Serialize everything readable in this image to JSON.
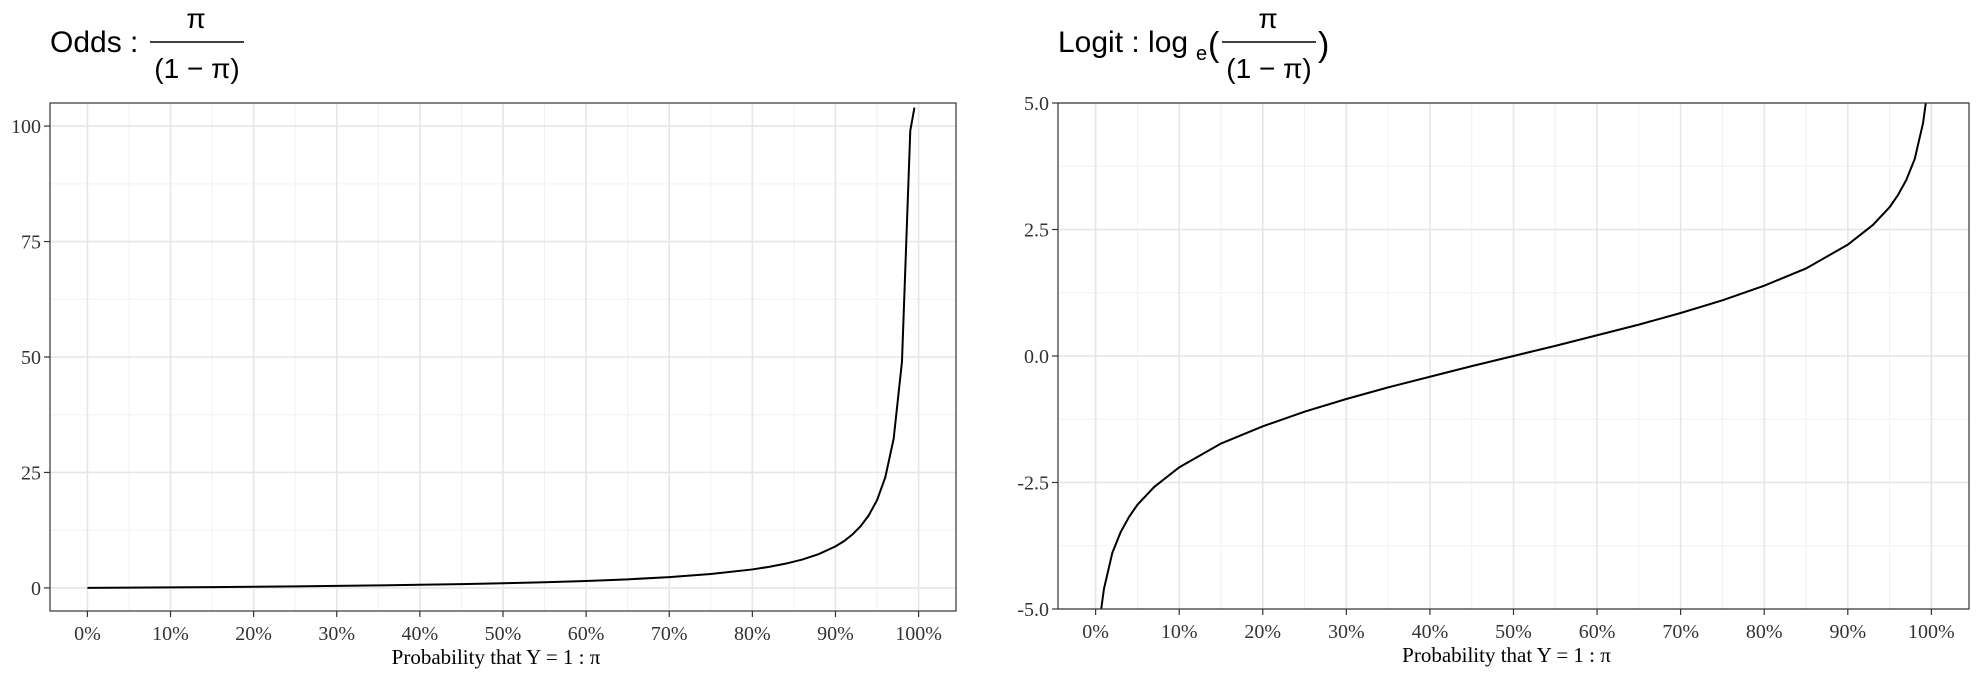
{
  "chart_data": [
    {
      "type": "line",
      "title": {
        "prefix": "Odds : ",
        "numerator": "π",
        "denominator": "(1 − π)"
      },
      "xlabel": "Probability that Y = 1 : π",
      "ylabel": "",
      "xlim": [
        0,
        1
      ],
      "ylim": [
        -5,
        105
      ],
      "x_ticks": [
        0,
        0.1,
        0.2,
        0.3,
        0.4,
        0.5,
        0.6,
        0.7,
        0.8,
        0.9,
        1.0
      ],
      "x_tick_labels": [
        "0%",
        "10%",
        "20%",
        "30%",
        "40%",
        "50%",
        "60%",
        "70%",
        "80%",
        "90%",
        "100%"
      ],
      "y_ticks": [
        0,
        25,
        50,
        75,
        100
      ],
      "y_tick_labels": [
        "0",
        "25",
        "50",
        "75",
        "100"
      ],
      "grid": true,
      "series": [
        {
          "x": [
            0,
            0.05,
            0.1,
            0.15,
            0.2,
            0.25,
            0.3,
            0.35,
            0.4,
            0.45,
            0.5,
            0.55,
            0.6,
            0.65,
            0.7,
            0.75,
            0.8,
            0.82,
            0.84,
            0.86,
            0.88,
            0.9,
            0.91,
            0.92,
            0.93,
            0.94,
            0.95,
            0.96,
            0.97,
            0.98,
            0.99,
            0.995
          ],
          "y": [
            0,
            0.05,
            0.11,
            0.18,
            0.25,
            0.33,
            0.43,
            0.54,
            0.67,
            0.82,
            1.0,
            1.22,
            1.5,
            1.86,
            2.33,
            3.0,
            4.0,
            4.56,
            5.25,
            6.14,
            7.33,
            9.0,
            10.1,
            11.5,
            13.3,
            15.7,
            19.0,
            24.0,
            32.3,
            49.0,
            99.0,
            104
          ]
        }
      ]
    },
    {
      "type": "line",
      "title": {
        "prefix": "Logit : log",
        "subscript": "e",
        "numerator": "π",
        "denominator": "(1 − π)"
      },
      "xlabel": "Probability that Y = 1 : π",
      "ylabel": "",
      "xlim": [
        0,
        1
      ],
      "ylim": [
        -5,
        5
      ],
      "x_ticks": [
        0,
        0.1,
        0.2,
        0.3,
        0.4,
        0.5,
        0.6,
        0.7,
        0.8,
        0.9,
        1.0
      ],
      "x_tick_labels": [
        "0%",
        "10%",
        "20%",
        "30%",
        "40%",
        "50%",
        "60%",
        "70%",
        "80%",
        "90%",
        "100%"
      ],
      "y_ticks": [
        -5,
        -2.5,
        0,
        2.5,
        5
      ],
      "y_tick_labels": [
        "-5.0",
        "-2.5",
        "0.0",
        "2.5",
        "5.0"
      ],
      "grid": true,
      "series": [
        {
          "x": [
            0.0067,
            0.01,
            0.02,
            0.03,
            0.04,
            0.05,
            0.07,
            0.1,
            0.15,
            0.2,
            0.25,
            0.3,
            0.35,
            0.4,
            0.45,
            0.5,
            0.55,
            0.6,
            0.65,
            0.7,
            0.75,
            0.8,
            0.85,
            0.9,
            0.93,
            0.95,
            0.96,
            0.97,
            0.98,
            0.99,
            0.9933
          ],
          "y": [
            -5.0,
            -4.6,
            -3.89,
            -3.48,
            -3.18,
            -2.94,
            -2.59,
            -2.2,
            -1.73,
            -1.39,
            -1.1,
            -0.85,
            -0.62,
            -0.41,
            -0.2,
            0,
            0.2,
            0.41,
            0.62,
            0.85,
            1.1,
            1.39,
            1.73,
            2.2,
            2.59,
            2.94,
            3.18,
            3.48,
            3.89,
            4.6,
            5.0
          ]
        }
      ]
    }
  ]
}
